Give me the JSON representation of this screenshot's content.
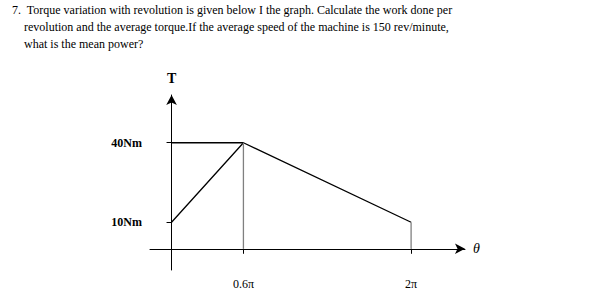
{
  "chart_data": {
    "type": "line",
    "annotations": [
      "7.  Torque variation with revolution is given below I the graph. Calculate the work done per",
      "    revolution and the average torque.If the average speed of the machine is 150 rev/minute,",
      "    what is the mean power?"
    ],
    "xlabel": "θ",
    "ylabel": "T",
    "series": [
      {
        "x": [
          0,
          0.6,
          2.0
        ],
        "values": [
          10,
          40,
          10
        ],
        "color": "#000000"
      },
      {
        "x": [
          0,
          0.6
        ],
        "values": [
          40,
          40
        ],
        "color": "#000000"
      },
      {
        "x": [
          0.6,
          0.6
        ],
        "values": [
          0,
          40
        ],
        "color": "#808080"
      },
      {
        "x": [
          2.0,
          2.0
        ],
        "values": [
          0,
          10
        ],
        "color": "#808080"
      }
    ],
    "xlim": [
      -0.18,
      2.45
    ],
    "ylim": [
      -8,
      58
    ],
    "xticks": [
      {
        "value": 0.6,
        "label": "0.6π"
      },
      {
        "value": 2.0,
        "label": "2π"
      }
    ],
    "yticks": [
      {
        "value": 10,
        "label": "10Nm"
      },
      {
        "value": 40,
        "label": "40Nm"
      }
    ],
    "grid": false
  }
}
